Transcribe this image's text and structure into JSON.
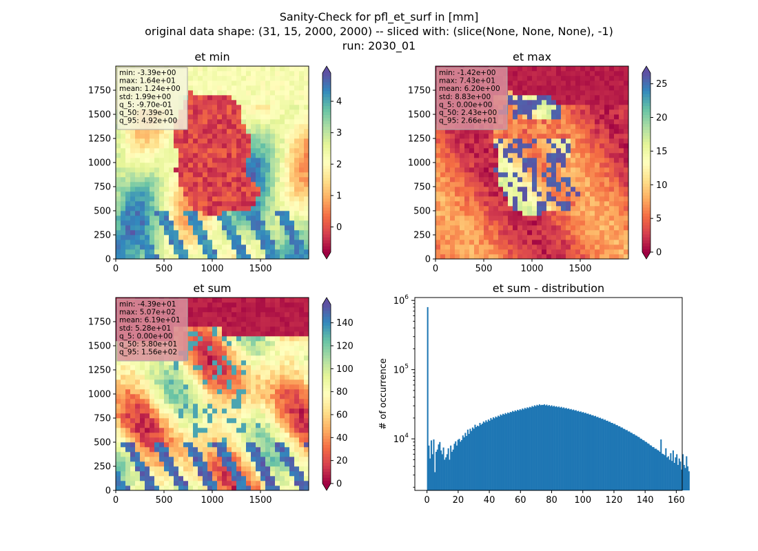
{
  "figure": {
    "title_lines": [
      "Sanity-Check for pfl_et_surf in [mm]",
      "original data shape: (31, 15, 2000, 2000) -- sliced with: (slice(None, None, None), -1)",
      "run: 2030_01"
    ]
  },
  "chart_data": [
    {
      "type": "heatmap",
      "title": "et min",
      "xlabel": "",
      "ylabel": "",
      "xlim": [
        0,
        2000
      ],
      "ylim": [
        0,
        2000
      ],
      "xticks": [
        0,
        500,
        1000,
        1500
      ],
      "yticks": [
        0,
        250,
        500,
        750,
        1000,
        1250,
        1500,
        1750
      ],
      "colormap": "Spectral",
      "colorbar": {
        "min": -0.8,
        "max": 4.9,
        "ticks": [
          0,
          1,
          2,
          3,
          4
        ],
        "extend": "both"
      },
      "stats": [
        "min: -3.39e+00",
        "max: 1.64e+01",
        "mean: 1.24e+00",
        "std: 1.99e+00",
        "q_5: -9.70e-01",
        "q_50: 7.39e-01",
        "q_95: 4.92e+00"
      ],
      "stats_box_color": "#f4f4dc"
    },
    {
      "type": "heatmap",
      "title": "et max",
      "xlabel": "",
      "ylabel": "",
      "xlim": [
        0,
        2000
      ],
      "ylim": [
        0,
        2000
      ],
      "xticks": [
        0,
        500,
        1000,
        1500
      ],
      "yticks": [
        0,
        250,
        500,
        750,
        1000,
        1250,
        1500,
        1750
      ],
      "colormap": "Spectral",
      "colorbar": {
        "min": 0,
        "max": 26.6,
        "ticks": [
          0,
          5,
          10,
          15,
          20,
          25
        ],
        "extend": "both"
      },
      "stats": [
        "min: -1.42e+00",
        "max: 7.43e+01",
        "mean: 6.20e+00",
        "std: 8.83e+00",
        "q_5: 0.00e+00",
        "q_50: 2.43e+00",
        "q_95: 2.66e+01"
      ],
      "stats_box_color": "#d8909c"
    },
    {
      "type": "heatmap",
      "title": "et sum",
      "xlabel": "",
      "ylabel": "",
      "xlim": [
        0,
        2000
      ],
      "ylim": [
        0,
        2000
      ],
      "xticks": [
        0,
        500,
        1000,
        1500
      ],
      "yticks": [
        0,
        250,
        500,
        750,
        1000,
        1250,
        1500,
        1750
      ],
      "colormap": "Spectral",
      "colorbar": {
        "min": 0,
        "max": 156,
        "ticks": [
          0,
          20,
          40,
          60,
          80,
          100,
          120,
          140
        ],
        "extend": "both"
      },
      "stats": [
        "min: -4.39e+01",
        "max: 5.07e+02",
        "mean: 6.19e+01",
        "std: 5.28e+01",
        "q_5: 0.00e+00",
        "q_50: 5.80e+01",
        "q_95: 1.56e+02"
      ],
      "stats_box_color": "#d8909c"
    },
    {
      "type": "bar",
      "title": "et sum - distribution",
      "xlabel": "",
      "ylabel": "# of occurrence",
      "yscale": "log",
      "xlim": [
        -7.8,
        163.8
      ],
      "ylim": [
        1800,
        1100000
      ],
      "xticks": [
        0,
        20,
        40,
        60,
        80,
        100,
        120,
        140,
        160
      ],
      "yticks": [
        10000,
        100000,
        1000000
      ],
      "ytick_labels": [
        "10^4",
        "10^5",
        "10^6"
      ],
      "color": "#1f77b4",
      "bin_start": 0,
      "bin_width": 0.78,
      "values": [
        800000,
        8000,
        5200,
        9500,
        6000,
        9800,
        3300,
        6500,
        7000,
        8300,
        9000,
        6800,
        6000,
        7500,
        5000,
        5400,
        6000,
        7300,
        5000,
        8000,
        6500,
        7000,
        8500,
        9200,
        8000,
        9700,
        10000,
        9100,
        9600,
        11200,
        10500,
        12200,
        11000,
        13600,
        11800,
        14000,
        13000,
        14600,
        14000,
        16000,
        14800,
        15500,
        15200,
        17000,
        16000,
        16600,
        17800,
        17200,
        18500,
        17600,
        19000,
        18200,
        20000,
        19000,
        20500,
        19800,
        21000,
        20400,
        21600,
        21000,
        22500,
        21800,
        23000,
        22400,
        23600,
        22800,
        24000,
        23400,
        24500,
        24200,
        25300,
        24600,
        25800,
        25000,
        26300,
        25600,
        26800,
        26000,
        27400,
        26600,
        28000,
        27200,
        28500,
        27800,
        29000,
        28400,
        29800,
        29000,
        30500,
        29600,
        31000,
        30200,
        31500,
        30600,
        31000,
        30800,
        31500,
        30400,
        31200,
        30000,
        30800,
        29600,
        30500,
        29300,
        30000,
        29000,
        29600,
        28600,
        29300,
        28200,
        29000,
        27800,
        28500,
        27400,
        28000,
        27000,
        27500,
        26500,
        27000,
        26000,
        26500,
        25600,
        26000,
        25000,
        25400,
        24500,
        24900,
        24000,
        24400,
        23500,
        23800,
        23000,
        23200,
        22400,
        22600,
        21800,
        22000,
        21200,
        21500,
        20600,
        20800,
        20000,
        20200,
        19400,
        19600,
        18800,
        19000,
        18200,
        18300,
        17600,
        17700,
        17000,
        17000,
        16400,
        16500,
        15800,
        15800,
        15200,
        15200,
        14600,
        14600,
        14000,
        13900,
        13400,
        13400,
        12800,
        12800,
        12300,
        12200,
        11700,
        11700,
        11200,
        11100,
        10700,
        10600,
        10100,
        10000,
        9600,
        9500,
        9100,
        9000,
        8600,
        8500,
        8100,
        8000,
        7600,
        7600,
        7200,
        7200,
        6900,
        6800,
        6500,
        9800,
        6100,
        6000,
        5800,
        7300,
        5400,
        5600,
        5000,
        6200,
        4800,
        6800,
        4500,
        5400,
        6000,
        4200,
        5200,
        4700,
        3600,
        6000,
        4200,
        3800,
        5600,
        4000,
        3400
      ]
    }
  ]
}
